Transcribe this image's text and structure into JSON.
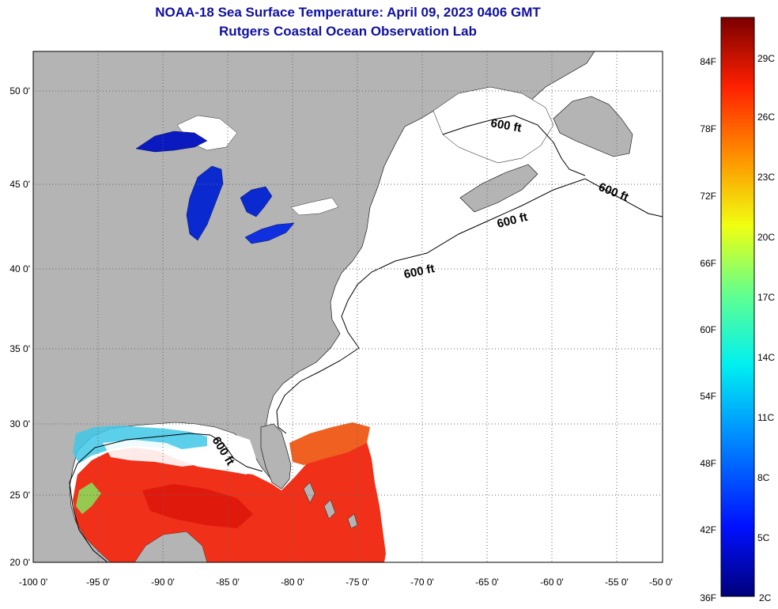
{
  "header": {
    "title_line1": "NOAA-18 Sea Surface Temperature:  April 09, 2023 0406 GMT",
    "title_line2": "Rutgers Coastal Ocean Observation Lab"
  },
  "map": {
    "lon_labels": [
      "-100 0'",
      "-95 0'",
      "-90 0'",
      "-85 0'",
      "-80 0'",
      "-75 0'",
      "-70 0'",
      "-65 0'",
      "-60 0'",
      "-55 0'",
      "-50 0'"
    ],
    "lat_labels": [
      "50 0'",
      "45 0'",
      "40 0'",
      "35 0'",
      "30 0'",
      "25 0'",
      "20 0'"
    ],
    "contour_label": "600 ft",
    "colors": {
      "land": "#b4b4b4",
      "ocean_no_data": "#ffffff",
      "warm_water": "#f03018"
    }
  },
  "colorbar": {
    "fahrenheit_labels": [
      "84F",
      "78F",
      "72F",
      "66F",
      "60F",
      "54F",
      "48F",
      "42F",
      "36F"
    ],
    "celsius_labels": [
      "29C",
      "26C",
      "23C",
      "20C",
      "17C",
      "14C",
      "11C",
      "8C",
      "5C",
      "2C"
    ]
  }
}
